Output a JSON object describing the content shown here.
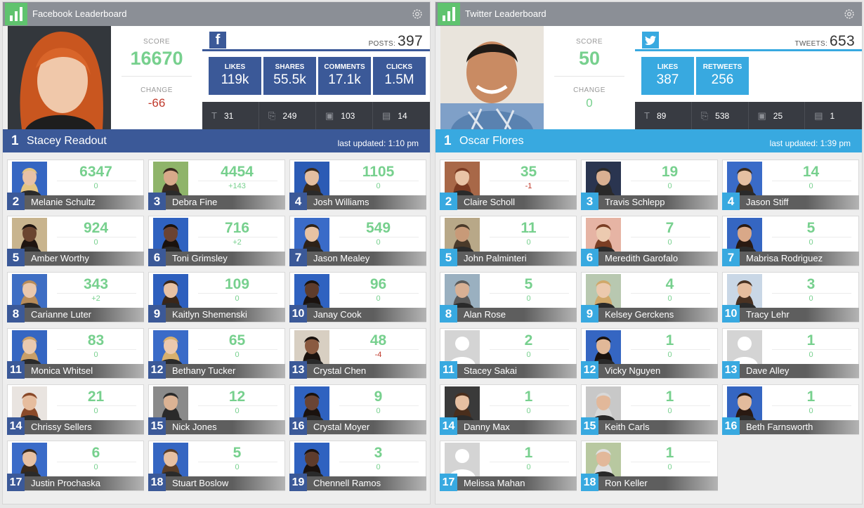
{
  "colors": {
    "fb_blue": "#3b5998",
    "tw_blue": "#38a9e0",
    "positive": "#77d08e",
    "negative": "#c0392b",
    "neutral_change": "#77d08e"
  },
  "facebook": {
    "title": "Facebook Leaderboard",
    "score_label": "SCORE",
    "score": "16670",
    "change_label": "CHANGE",
    "change": "-66",
    "posts_label": "POSTS:",
    "posts": "397",
    "metrics": [
      {
        "label": "LIKES",
        "value": "119k"
      },
      {
        "label": "SHARES",
        "value": "55.5k"
      },
      {
        "label": "COMMENTS",
        "value": "17.1k"
      },
      {
        "label": "CLICKS",
        "value": "1.5M"
      }
    ],
    "counts": [
      {
        "icon": "text-icon",
        "value": "31"
      },
      {
        "icon": "link-icon",
        "value": "249"
      },
      {
        "icon": "photo-icon",
        "value": "103"
      },
      {
        "icon": "video-icon",
        "value": "14"
      }
    ],
    "leader": {
      "rank": "1",
      "name": "Stacey Readout",
      "updated": "last updated: 1:10 pm"
    },
    "cards": [
      {
        "rank": "2",
        "name": "Melanie Schultz",
        "score": "6347",
        "change": "0",
        "dir": "zero",
        "bg": "#3566c2",
        "skin": "#e8c2a6",
        "hair": "#e3c482"
      },
      {
        "rank": "3",
        "name": "Debra Fine",
        "score": "4454",
        "change": "+143",
        "dir": "up",
        "bg": "#8fb46a",
        "skin": "#d8a98a",
        "hair": "#3a2a20"
      },
      {
        "rank": "4",
        "name": "Josh Williams",
        "score": "1105",
        "change": "0",
        "dir": "zero",
        "bg": "#2b5bb5",
        "skin": "#e4bea0",
        "hair": "#3a2a1c"
      },
      {
        "rank": "5",
        "name": "Amber Worthy",
        "score": "924",
        "change": "0",
        "dir": "zero",
        "bg": "#c8b48e",
        "skin": "#6a4530",
        "hair": "#1e1410"
      },
      {
        "rank": "6",
        "name": "Toni Grimsley",
        "score": "716",
        "change": "+2",
        "dir": "up",
        "bg": "#2f62c0",
        "skin": "#6b4332",
        "hair": "#1a120e"
      },
      {
        "rank": "7",
        "name": "Jason Mealey",
        "score": "549",
        "change": "0",
        "dir": "zero",
        "bg": "#3a6bc8",
        "skin": "#e7c2a3",
        "hair": "#2e2218"
      },
      {
        "rank": "8",
        "name": "Carianne Luter",
        "score": "343",
        "change": "+2",
        "dir": "up",
        "bg": "#3e6ec4",
        "skin": "#e9c8ad",
        "hair": "#b78c5a"
      },
      {
        "rank": "9",
        "name": "Kaitlyn Shemenski",
        "score": "109",
        "change": "0",
        "dir": "zero",
        "bg": "#2d5fbe",
        "skin": "#e7c1a4",
        "hair": "#3a2618"
      },
      {
        "rank": "10",
        "name": "Janay Cook",
        "score": "96",
        "change": "0",
        "dir": "zero",
        "bg": "#2f62c0",
        "skin": "#5e3c2c",
        "hair": "#1a120e"
      },
      {
        "rank": "11",
        "name": "Monica Whitsel",
        "score": "83",
        "change": "0",
        "dir": "zero",
        "bg": "#3566c2",
        "skin": "#eacaaf",
        "hair": "#c99f68"
      },
      {
        "rank": "12",
        "name": "Bethany Tucker",
        "score": "65",
        "change": "0",
        "dir": "zero",
        "bg": "#3a6bc8",
        "skin": "#ecc9ad",
        "hair": "#d8b06e"
      },
      {
        "rank": "13",
        "name": "Crystal Chen",
        "score": "48",
        "change": "-4",
        "dir": "down",
        "bg": "#d8cfc2",
        "skin": "#8a5a40",
        "hair": "#1a120e"
      },
      {
        "rank": "14",
        "name": "Chrissy Sellers",
        "score": "21",
        "change": "0",
        "dir": "zero",
        "bg": "#e9e4e0",
        "skin": "#e6bd9e",
        "hair": "#8a4a2a"
      },
      {
        "rank": "15",
        "name": "Nick Jones",
        "score": "12",
        "change": "0",
        "dir": "zero",
        "bg": "#8a8a8a",
        "skin": "#dcb394",
        "hair": "#2a2a2a"
      },
      {
        "rank": "16",
        "name": "Crystal Moyer",
        "score": "9",
        "change": "0",
        "dir": "zero",
        "bg": "#2f62c0",
        "skin": "#6a4434",
        "hair": "#1a120e"
      },
      {
        "rank": "17",
        "name": "Justin Prochaska",
        "score": "6",
        "change": "0",
        "dir": "zero",
        "bg": "#3a6bc8",
        "skin": "#e6c0a2",
        "hair": "#3a2a1c"
      },
      {
        "rank": "18",
        "name": "Stuart Boslow",
        "score": "5",
        "change": "0",
        "dir": "zero",
        "bg": "#3566c2",
        "skin": "#e6c0a2",
        "hair": "#5a3e28"
      },
      {
        "rank": "19",
        "name": "Chennell Ramos",
        "score": "3",
        "change": "0",
        "dir": "zero",
        "bg": "#2f62c0",
        "skin": "#5e3c2c",
        "hair": "#1a120e"
      }
    ]
  },
  "twitter": {
    "title": "Twitter Leaderboard",
    "score_label": "SCORE",
    "score": "50",
    "change_label": "CHANGE",
    "change": "0",
    "posts_label": "TWEETS:",
    "posts": "653",
    "metrics": [
      {
        "label": "LIKES",
        "value": "387"
      },
      {
        "label": "RETWEETS",
        "value": "256"
      }
    ],
    "counts": [
      {
        "icon": "text-icon",
        "value": "89"
      },
      {
        "icon": "link-icon",
        "value": "538"
      },
      {
        "icon": "photo-icon",
        "value": "25"
      },
      {
        "icon": "video-icon",
        "value": "1"
      }
    ],
    "leader": {
      "rank": "1",
      "name": "Oscar Flores",
      "updated": "last updated: 1:39 pm"
    },
    "cards": [
      {
        "rank": "2",
        "name": "Claire Scholl",
        "score": "35",
        "change": "-1",
        "dir": "down",
        "bg": "#a86848",
        "skin": "#e9c4a6",
        "hair": "#7a3a22"
      },
      {
        "rank": "3",
        "name": "Travis Schlepp",
        "score": "19",
        "change": "0",
        "dir": "zero",
        "bg": "#2a3550",
        "skin": "#d9b092",
        "hair": "#2a2a2a"
      },
      {
        "rank": "4",
        "name": "Jason Stiff",
        "score": "14",
        "change": "0",
        "dir": "zero",
        "bg": "#3a6bc8",
        "skin": "#e6c0a2",
        "hair": "#3a2a1c"
      },
      {
        "rank": "5",
        "name": "John Palminteri",
        "score": "11",
        "change": "0",
        "dir": "zero",
        "bg": "#b8a888",
        "skin": "#c89a78",
        "hair": "#4a3a2a"
      },
      {
        "rank": "6",
        "name": "Meredith Garofalo",
        "score": "7",
        "change": "0",
        "dir": "zero",
        "bg": "#e6b4a4",
        "skin": "#eccab0",
        "hair": "#7a3e24"
      },
      {
        "rank": "7",
        "name": "Mabrisa Rodriguez",
        "score": "5",
        "change": "0",
        "dir": "zero",
        "bg": "#3566c2",
        "skin": "#d9a888",
        "hair": "#2a1a12"
      },
      {
        "rank": "8",
        "name": "Alan Rose",
        "score": "5",
        "change": "0",
        "dir": "zero",
        "bg": "#9ab0c0",
        "skin": "#d8b094",
        "hair": "#5a5a5a"
      },
      {
        "rank": "9",
        "name": "Kelsey Gerckens",
        "score": "4",
        "change": "0",
        "dir": "zero",
        "bg": "#b8c8b0",
        "skin": "#ecc9ad",
        "hair": "#d0a86a"
      },
      {
        "rank": "10",
        "name": "Tracy Lehr",
        "score": "3",
        "change": "0",
        "dir": "zero",
        "bg": "#c9d7e6",
        "skin": "#e6bd9e",
        "hair": "#4a3222"
      },
      {
        "rank": "11",
        "name": "Stacey Sakai",
        "score": "2",
        "change": "0",
        "dir": "zero",
        "bg": "placeholder"
      },
      {
        "rank": "12",
        "name": "Vicky Nguyen",
        "score": "1",
        "change": "0",
        "dir": "zero",
        "bg": "#3566c2",
        "skin": "#e1b898",
        "hair": "#1a120e"
      },
      {
        "rank": "13",
        "name": "Dave Alley",
        "score": "1",
        "change": "0",
        "dir": "zero",
        "bg": "placeholder"
      },
      {
        "rank": "14",
        "name": "Danny Max",
        "score": "1",
        "change": "0",
        "dir": "zero",
        "bg": "#3a3a3a",
        "skin": "#e6c0a2",
        "hair": "#4a2e1c"
      },
      {
        "rank": "15",
        "name": "Keith Carls",
        "score": "1",
        "change": "0",
        "dir": "zero",
        "bg": "#c8c8c8",
        "skin": "#e2b89a",
        "hair": "#d8d8d8"
      },
      {
        "rank": "16",
        "name": "Beth Farnsworth",
        "score": "1",
        "change": "0",
        "dir": "zero",
        "bg": "#3566c2",
        "skin": "#e3bb9c",
        "hair": "#2a1a12"
      },
      {
        "rank": "17",
        "name": "Melissa Mahan",
        "score": "1",
        "change": "0",
        "dir": "zero",
        "bg": "placeholder"
      },
      {
        "rank": "18",
        "name": "Ron Keller",
        "score": "1",
        "change": "0",
        "dir": "zero",
        "bg": "#b8c8a0",
        "skin": "#e2b89a",
        "hair": "#e0e0e0"
      }
    ]
  }
}
